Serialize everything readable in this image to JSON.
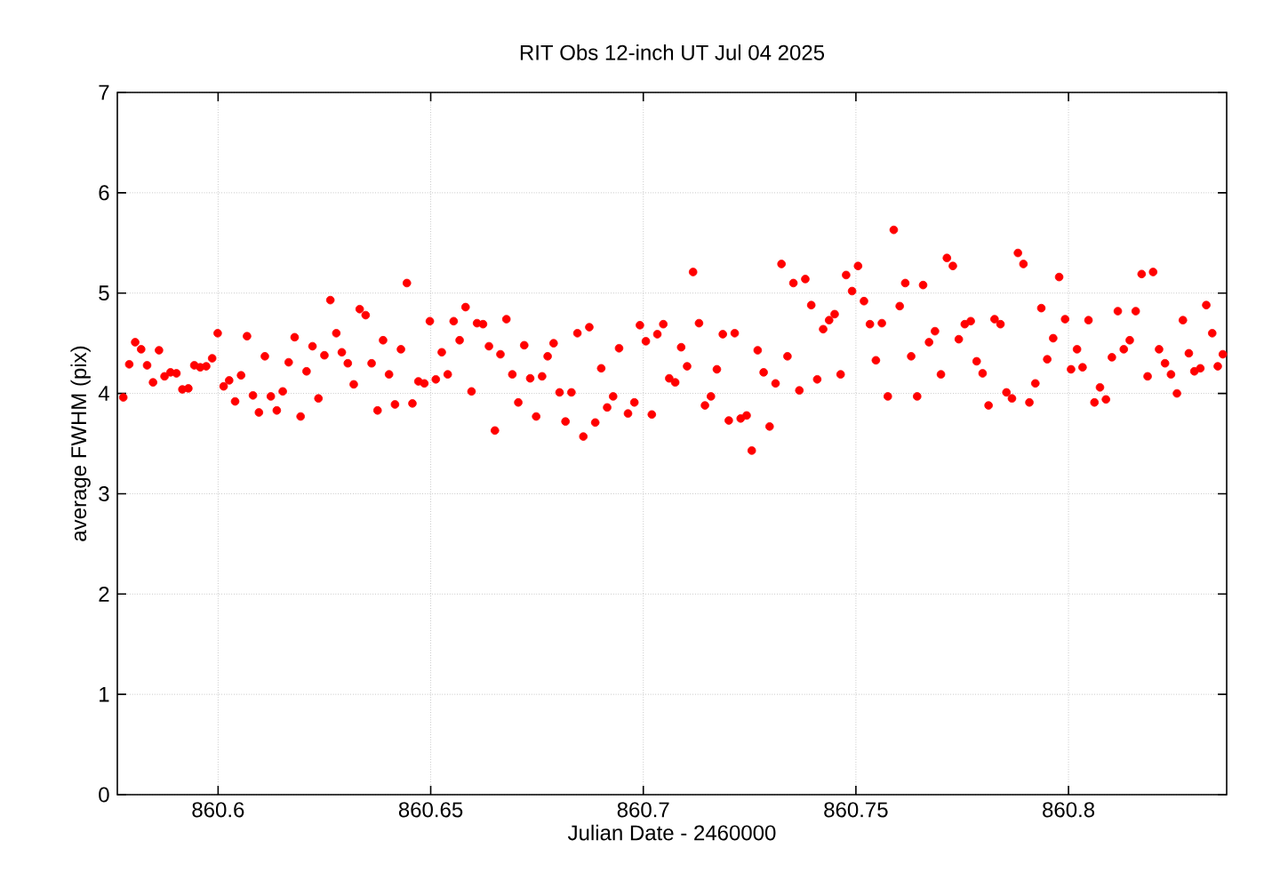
{
  "chart_data": {
    "type": "scatter",
    "title": "RIT Obs 12-inch UT Jul 04 2025",
    "xlabel": "Julian Date - 2460000",
    "ylabel": "average FWHM (pix)",
    "xlim": [
      860.5763,
      860.8372
    ],
    "ylim": [
      0,
      7
    ],
    "xticks": [
      860.6,
      860.65,
      860.7,
      860.75,
      860.8
    ],
    "yticks": [
      0,
      1,
      2,
      3,
      4,
      5,
      6,
      7
    ],
    "grid": true,
    "marker": "circle",
    "series": [
      {
        "color": "#ff0000",
        "x": [
          860.5777,
          860.5791,
          860.5805,
          860.5819,
          860.5833,
          860.5847,
          860.5861,
          860.5874,
          860.5888,
          860.5902,
          860.5916,
          860.593,
          860.5944,
          860.5958,
          860.5972,
          860.5986,
          860.5999,
          860.6013,
          860.6026,
          860.604,
          860.6054,
          860.6068,
          860.6082,
          860.6096,
          860.611,
          860.6124,
          860.6138,
          860.6152,
          860.6166,
          860.618,
          860.6194,
          860.6208,
          860.6222,
          860.6236,
          860.625,
          860.6264,
          860.6278,
          860.6291,
          860.6305,
          860.6319,
          860.6333,
          860.6347,
          860.6361,
          860.6375,
          860.6388,
          860.6402,
          860.6416,
          860.643,
          860.6444,
          860.6457,
          860.6471,
          860.6485,
          860.6498,
          860.6512,
          860.6526,
          860.654,
          860.6554,
          860.6568,
          860.6582,
          860.6596,
          860.6609,
          860.6623,
          860.6637,
          860.6651,
          860.6664,
          860.6678,
          860.6692,
          860.6706,
          860.672,
          860.6734,
          860.6748,
          860.6762,
          860.6775,
          860.6789,
          860.6803,
          860.6817,
          860.6831,
          860.6845,
          860.6859,
          860.6873,
          860.6887,
          860.6901,
          860.6915,
          860.6929,
          860.6943,
          860.6964,
          860.6979,
          860.6992,
          860.7006,
          860.702,
          860.7033,
          860.7047,
          860.7061,
          860.7075,
          860.7089,
          860.7103,
          860.7117,
          860.7131,
          860.7145,
          860.7159,
          860.7173,
          860.7187,
          860.7201,
          860.7215,
          860.7229,
          860.7243,
          860.7255,
          860.7269,
          860.7283,
          860.7297,
          860.7311,
          860.7325,
          860.7339,
          860.7353,
          860.7367,
          860.7381,
          860.7395,
          860.7409,
          860.7423,
          860.7437,
          860.745,
          860.7464,
          860.7477,
          860.7491,
          860.7505,
          860.7519,
          860.7533,
          860.7547,
          860.7561,
          860.7575,
          860.7589,
          860.7603,
          860.7616,
          860.763,
          860.7644,
          860.7658,
          860.7672,
          860.7686,
          860.77,
          860.7714,
          860.7728,
          860.7742,
          860.7756,
          860.777,
          860.7784,
          860.7798,
          860.7812,
          860.7826,
          860.784,
          860.7854,
          860.7867,
          860.7881,
          860.7894,
          860.7908,
          860.7922,
          860.7936,
          860.795,
          860.7964,
          860.7978,
          860.7992,
          860.8006,
          860.802,
          860.8033,
          860.8047,
          860.8061,
          860.8074,
          860.8088,
          860.8102,
          860.8116,
          860.813,
          860.8144,
          860.8158,
          860.8172,
          860.8186,
          860.8199,
          860.8213,
          860.8227,
          860.8241,
          860.8255,
          860.8269,
          860.8283,
          860.8296,
          860.831,
          860.8324,
          860.8338,
          860.8351,
          860.8363
        ],
        "values": [
          3.96,
          4.29,
          4.51,
          4.44,
          4.28,
          4.11,
          4.43,
          4.17,
          4.21,
          4.2,
          4.04,
          4.05,
          4.28,
          4.26,
          4.27,
          4.35,
          4.6,
          4.07,
          4.13,
          3.92,
          4.18,
          4.57,
          3.98,
          3.81,
          4.37,
          3.97,
          3.83,
          4.02,
          4.31,
          4.56,
          3.77,
          4.22,
          4.47,
          3.95,
          4.38,
          4.93,
          4.6,
          4.41,
          4.3,
          4.09,
          4.84,
          4.78,
          4.3,
          3.83,
          4.53,
          4.19,
          3.89,
          4.44,
          5.1,
          3.9,
          4.12,
          4.1,
          4.72,
          4.14,
          4.41,
          4.19,
          4.72,
          4.53,
          4.86,
          4.02,
          4.7,
          4.69,
          4.47,
          3.63,
          4.39,
          4.74,
          4.19,
          3.91,
          4.48,
          4.15,
          3.77,
          4.17,
          4.37,
          4.5,
          4.01,
          3.72,
          4.01,
          4.6,
          3.57,
          4.66,
          3.71,
          4.25,
          3.86,
          3.97,
          4.45,
          3.8,
          3.91,
          4.68,
          4.52,
          3.79,
          4.59,
          4.69,
          4.15,
          4.11,
          4.46,
          4.27,
          5.21,
          4.7,
          3.88,
          3.97,
          4.24,
          4.59,
          3.73,
          4.6,
          3.75,
          3.78,
          3.43,
          4.43,
          4.21,
          3.67,
          4.1,
          5.29,
          4.37,
          5.1,
          4.03,
          5.14,
          4.88,
          4.14,
          4.64,
          4.73,
          4.79,
          4.19,
          5.18,
          5.02,
          5.27,
          4.92,
          4.69,
          4.33,
          4.7,
          3.97,
          5.63,
          4.87,
          5.1,
          4.37,
          3.97,
          5.08,
          4.51,
          4.62,
          4.19,
          5.35,
          5.27,
          4.54,
          4.69,
          4.72,
          4.32,
          4.2,
          3.88,
          4.74,
          4.69,
          4.01,
          3.95,
          5.4,
          5.29,
          3.91,
          4.1,
          4.85,
          4.34,
          4.55,
          5.16,
          4.74,
          4.24,
          4.44,
          4.26,
          4.73,
          3.91,
          4.06,
          3.94,
          4.36,
          4.82,
          4.44,
          4.53,
          4.82,
          5.19,
          4.17,
          5.21,
          4.44,
          4.3,
          4.19,
          4.0,
          4.73,
          4.4,
          4.22,
          4.25,
          4.88,
          4.6,
          4.27,
          4.39
        ]
      }
    ]
  }
}
